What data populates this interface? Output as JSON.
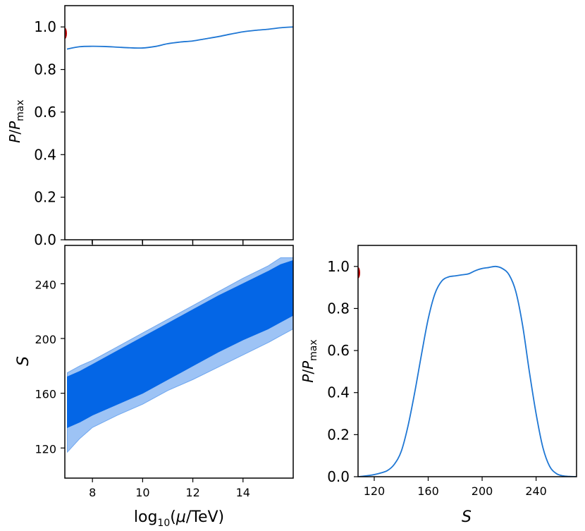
{
  "chart_data": [
    {
      "type": "line",
      "panel": "top-left",
      "ylabel": "P/P_max",
      "xlim": [
        7,
        16
      ],
      "ylim": [
        0,
        1.1
      ],
      "yticks": [
        0.0,
        0.2,
        0.4,
        0.6,
        0.8,
        1.0
      ],
      "ytick_labels": [
        "0.0",
        "0.2",
        "0.4",
        "0.6",
        "0.8",
        "1.0"
      ],
      "xticks": [
        8,
        10,
        12,
        14
      ],
      "color": "#1f77d4",
      "marker_color": "#c00000",
      "marker_y": 0.97,
      "series": [
        {
          "x": [
            7.0,
            7.5,
            8.0,
            8.5,
            9.0,
            9.5,
            10.0,
            10.5,
            11.0,
            11.5,
            12.0,
            12.5,
            13.0,
            13.5,
            14.0,
            14.5,
            15.0,
            15.5,
            16.0
          ],
          "y": [
            0.896,
            0.907,
            0.909,
            0.908,
            0.905,
            0.902,
            0.901,
            0.908,
            0.921,
            0.929,
            0.934,
            0.944,
            0.954,
            0.966,
            0.977,
            0.984,
            0.989,
            0.996,
            1.0
          ]
        }
      ]
    },
    {
      "type": "area",
      "panel": "bottom-left",
      "xlabel": "log10(μ/TeV)",
      "ylabel": "S",
      "xlim": [
        6.9,
        16
      ],
      "ylim": [
        98,
        268
      ],
      "xticks": [
        8,
        10,
        12,
        14
      ],
      "xtick_labels": [
        "8",
        "10",
        "12",
        "14"
      ],
      "yticks": [
        120,
        160,
        200,
        240
      ],
      "ytick_labels": [
        "120",
        "160",
        "200",
        "240"
      ],
      "outer_color": "#9dc3f5",
      "inner_color": "#0466e6",
      "x": [
        7.0,
        7.5,
        8.0,
        9.0,
        10.0,
        11.0,
        12.0,
        13.0,
        14.0,
        15.0,
        15.5,
        16.0
      ],
      "outer_upper": [
        175,
        180,
        184,
        194,
        204,
        214,
        224,
        234,
        244,
        253,
        259,
        259
      ],
      "outer_lower": [
        117,
        127,
        135,
        144,
        152,
        162,
        170,
        179,
        188,
        197,
        202,
        207
      ],
      "inner_upper": [
        172,
        176,
        181,
        191,
        201,
        211,
        221,
        231,
        240,
        249,
        254,
        257
      ],
      "inner_lower": [
        135,
        139,
        144,
        152,
        160,
        170,
        180,
        190,
        199,
        207,
        212,
        217
      ]
    },
    {
      "type": "line",
      "panel": "bottom-right",
      "xlabel": "S",
      "ylabel": "P/P_max",
      "xlim": [
        108,
        270
      ],
      "ylim": [
        0,
        1.1
      ],
      "xticks": [
        120,
        160,
        200,
        240
      ],
      "xtick_labels": [
        "120",
        "160",
        "200",
        "240"
      ],
      "yticks": [
        0.0,
        0.2,
        0.4,
        0.6,
        0.8,
        1.0
      ],
      "ytick_labels": [
        "0.0",
        "0.2",
        "0.4",
        "0.6",
        "0.8",
        "1.0"
      ],
      "color": "#1f77d4",
      "marker_color": "#c00000",
      "marker_y": 0.97,
      "series": [
        {
          "x": [
            108,
            115,
            120,
            125,
            130,
            135,
            140,
            145,
            150,
            155,
            160,
            165,
            170,
            175,
            180,
            185,
            190,
            195,
            200,
            205,
            210,
            215,
            220,
            225,
            230,
            235,
            240,
            245,
            250,
            255,
            260,
            265,
            270
          ],
          "y": [
            0.0,
            0.005,
            0.01,
            0.018,
            0.03,
            0.06,
            0.12,
            0.24,
            0.4,
            0.58,
            0.75,
            0.87,
            0.93,
            0.95,
            0.955,
            0.96,
            0.965,
            0.98,
            0.99,
            0.995,
            1.0,
            0.99,
            0.96,
            0.88,
            0.72,
            0.5,
            0.3,
            0.14,
            0.05,
            0.015,
            0.004,
            0.001,
            0.0
          ]
        }
      ]
    }
  ]
}
